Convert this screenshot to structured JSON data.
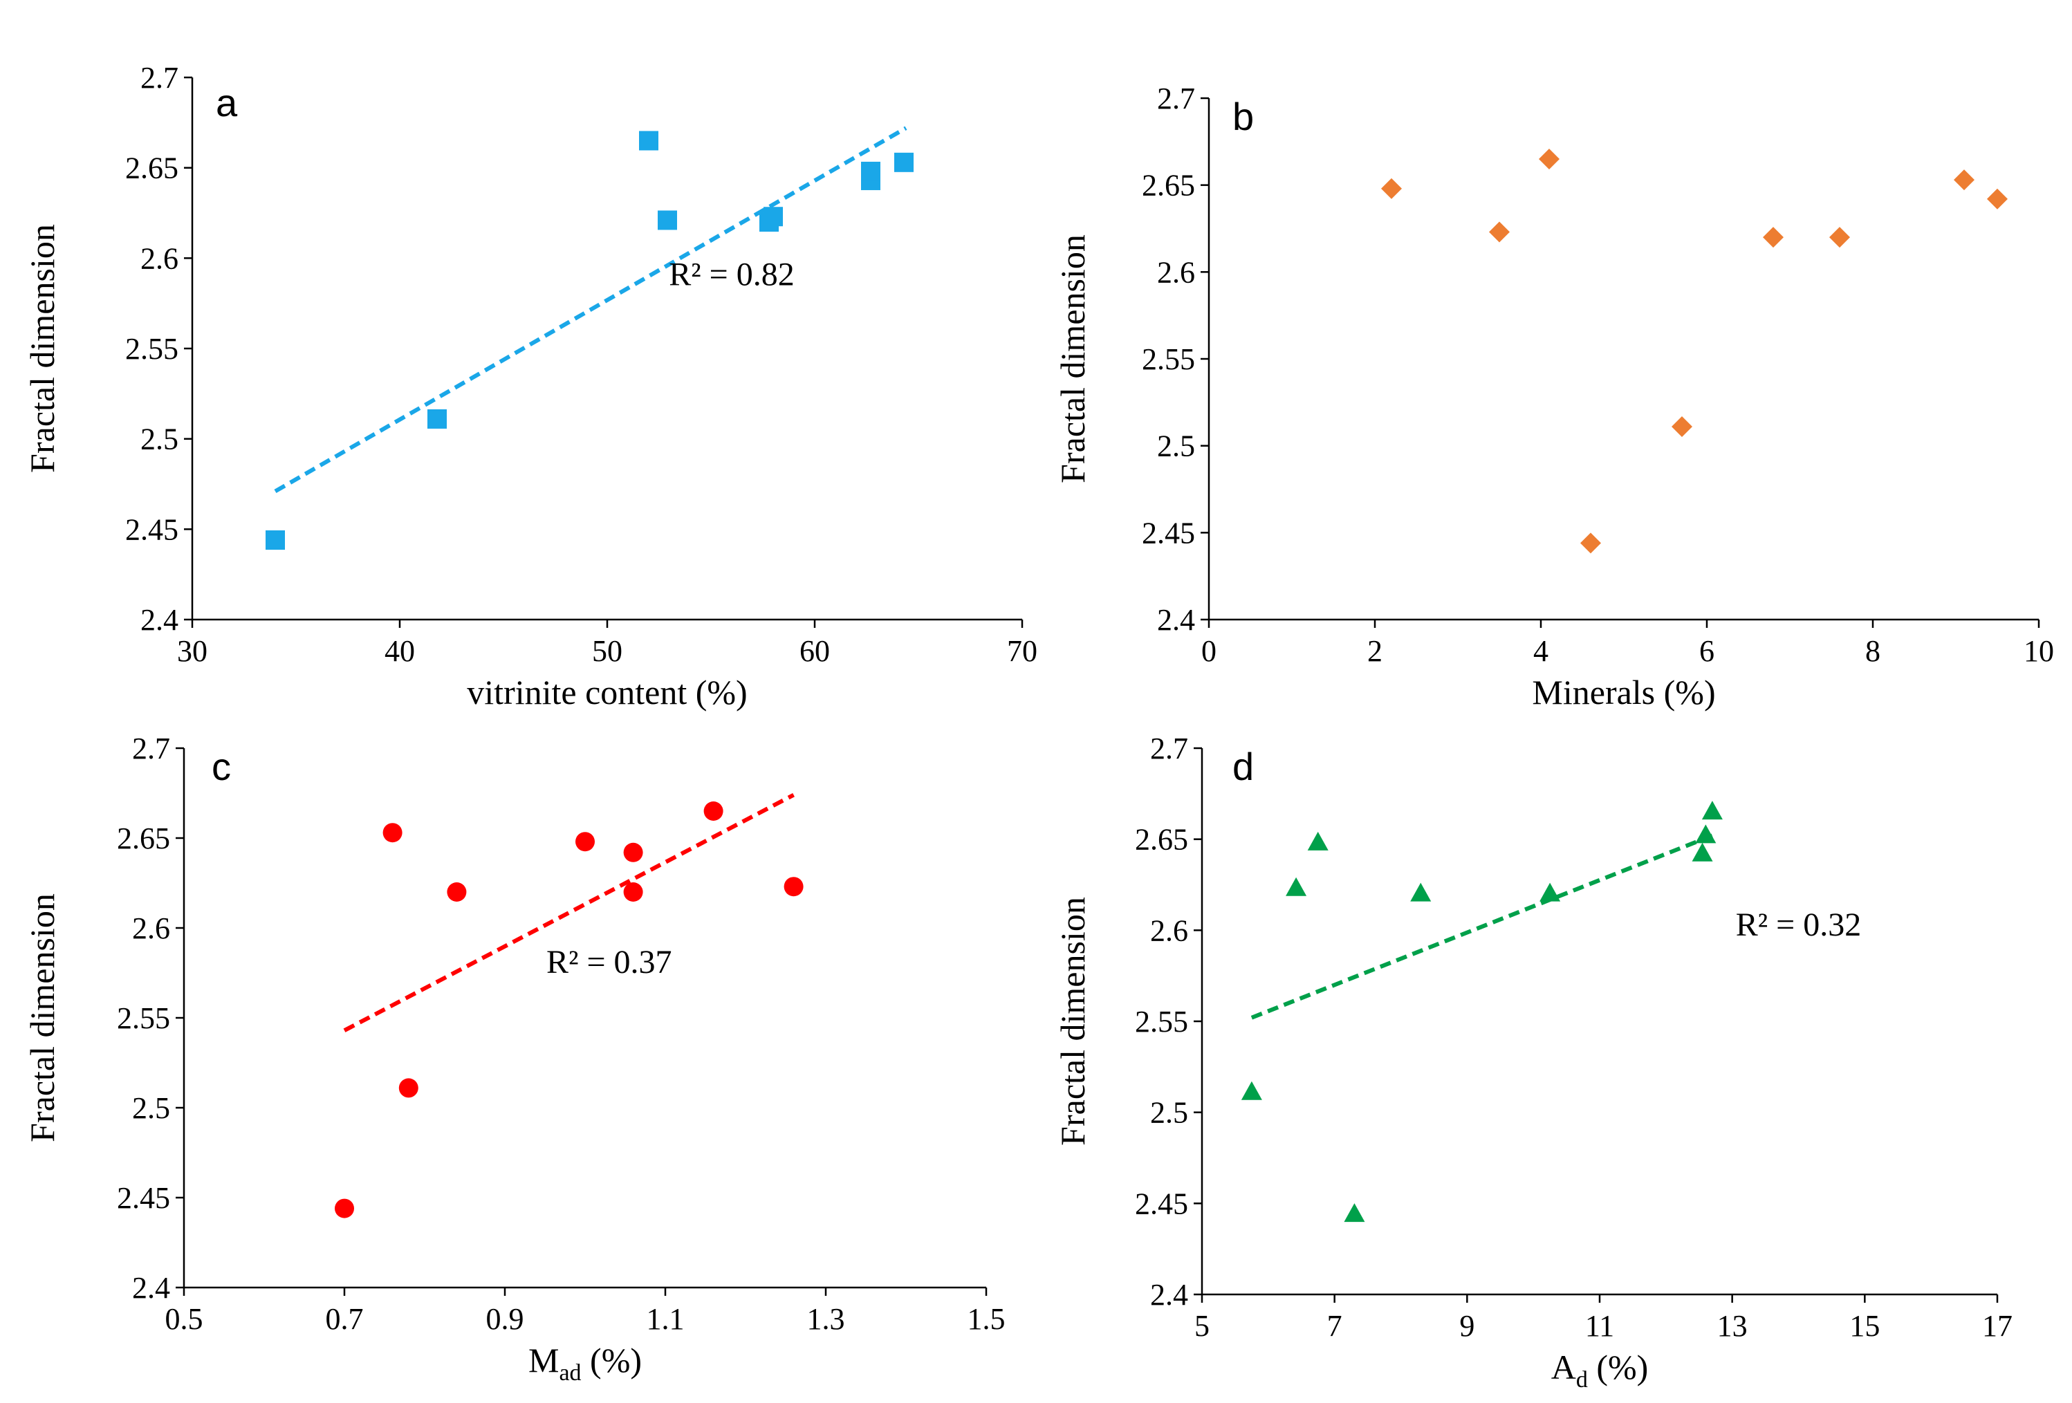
{
  "chart_data": [
    {
      "id": "a",
      "type": "scatter",
      "panel_label": "a",
      "xlabel": "vitrinite content (%)",
      "ylabel": "Fractal dimension",
      "xlim": [
        30,
        70
      ],
      "ylim": [
        2.4,
        2.7
      ],
      "xticks": [
        "30",
        "40",
        "50",
        "60",
        "70"
      ],
      "yticks": [
        "2.4",
        "2.45",
        "2.5",
        "2.55",
        "2.6",
        "2.65",
        "2.7"
      ],
      "marker": "square",
      "color": "#1aa7e8",
      "points": [
        {
          "x": 34.0,
          "y": 2.444
        },
        {
          "x": 41.8,
          "y": 2.511
        },
        {
          "x": 52.0,
          "y": 2.665
        },
        {
          "x": 52.9,
          "y": 2.621
        },
        {
          "x": 57.8,
          "y": 2.62
        },
        {
          "x": 58.0,
          "y": 2.623
        },
        {
          "x": 62.7,
          "y": 2.643
        },
        {
          "x": 62.7,
          "y": 2.648
        },
        {
          "x": 64.3,
          "y": 2.653
        }
      ],
      "trendline": {
        "x": [
          34.0,
          64.4
        ],
        "y": [
          2.471,
          2.672
        ]
      },
      "annotation": "R² = 0.82"
    },
    {
      "id": "b",
      "type": "scatter",
      "panel_label": "b",
      "xlabel": "Minerals (%)",
      "ylabel": "Fractal dimension",
      "xlim": [
        0,
        10
      ],
      "ylim": [
        2.4,
        2.7
      ],
      "xticks": [
        "0",
        "2",
        "4",
        "6",
        "8",
        "10"
      ],
      "yticks": [
        "2.4",
        "2.45",
        "2.5",
        "2.55",
        "2.6",
        "2.65",
        "2.7"
      ],
      "marker": "diamond",
      "color": "#ed7d31",
      "points": [
        {
          "x": 2.2,
          "y": 2.648
        },
        {
          "x": 3.5,
          "y": 2.623
        },
        {
          "x": 4.1,
          "y": 2.665
        },
        {
          "x": 4.6,
          "y": 2.444
        },
        {
          "x": 5.7,
          "y": 2.511
        },
        {
          "x": 6.8,
          "y": 2.62
        },
        {
          "x": 7.6,
          "y": 2.62
        },
        {
          "x": 9.1,
          "y": 2.653
        },
        {
          "x": 9.5,
          "y": 2.642
        }
      ]
    },
    {
      "id": "c",
      "type": "scatter",
      "panel_label": "c",
      "xlabel": "M",
      "xlabel_sub": "ad",
      "xlabel_suffix": " (%)",
      "ylabel": "Fractal dimension",
      "xlim": [
        0.5,
        1.5
      ],
      "ylim": [
        2.4,
        2.7
      ],
      "xticks": [
        "0.5",
        "0.7",
        "0.9",
        "1.1",
        "1.3",
        "1.5"
      ],
      "yticks": [
        "2.4",
        "2.45",
        "2.5",
        "2.55",
        "2.6",
        "2.65",
        "2.7"
      ],
      "marker": "circle",
      "color": "#ff0000",
      "points": [
        {
          "x": 0.7,
          "y": 2.444
        },
        {
          "x": 0.76,
          "y": 2.653
        },
        {
          "x": 0.78,
          "y": 2.511
        },
        {
          "x": 0.84,
          "y": 2.62
        },
        {
          "x": 1.0,
          "y": 2.648
        },
        {
          "x": 1.06,
          "y": 2.642
        },
        {
          "x": 1.06,
          "y": 2.62
        },
        {
          "x": 1.16,
          "y": 2.665
        },
        {
          "x": 1.26,
          "y": 2.623
        }
      ],
      "trendline": {
        "x": [
          0.7,
          1.26
        ],
        "y": [
          2.543,
          2.674
        ]
      },
      "annotation": "R² = 0.37"
    },
    {
      "id": "d",
      "type": "scatter",
      "panel_label": "d",
      "xlabel": "A",
      "xlabel_sub": "d",
      "xlabel_suffix": " (%)",
      "ylabel": "Fractal dimension",
      "xlim": [
        5,
        17
      ],
      "ylim": [
        2.4,
        2.7
      ],
      "xticks": [
        "5",
        "7",
        "9",
        "11",
        "13",
        "15",
        "17"
      ],
      "yticks": [
        "2.4",
        "2.45",
        "2.5",
        "2.55",
        "2.6",
        "2.65",
        "2.7"
      ],
      "marker": "triangle",
      "color": "#00a04a",
      "points": [
        {
          "x": 5.75,
          "y": 2.511
        },
        {
          "x": 6.42,
          "y": 2.623
        },
        {
          "x": 6.75,
          "y": 2.648
        },
        {
          "x": 7.3,
          "y": 2.444
        },
        {
          "x": 8.3,
          "y": 2.62
        },
        {
          "x": 10.25,
          "y": 2.62
        },
        {
          "x": 12.55,
          "y": 2.642
        },
        {
          "x": 12.6,
          "y": 2.652
        },
        {
          "x": 12.7,
          "y": 2.665
        }
      ],
      "trendline": {
        "x": [
          5.75,
          12.7
        ],
        "y": [
          2.552,
          2.652
        ]
      },
      "annotation": "R² = 0.32"
    }
  ]
}
